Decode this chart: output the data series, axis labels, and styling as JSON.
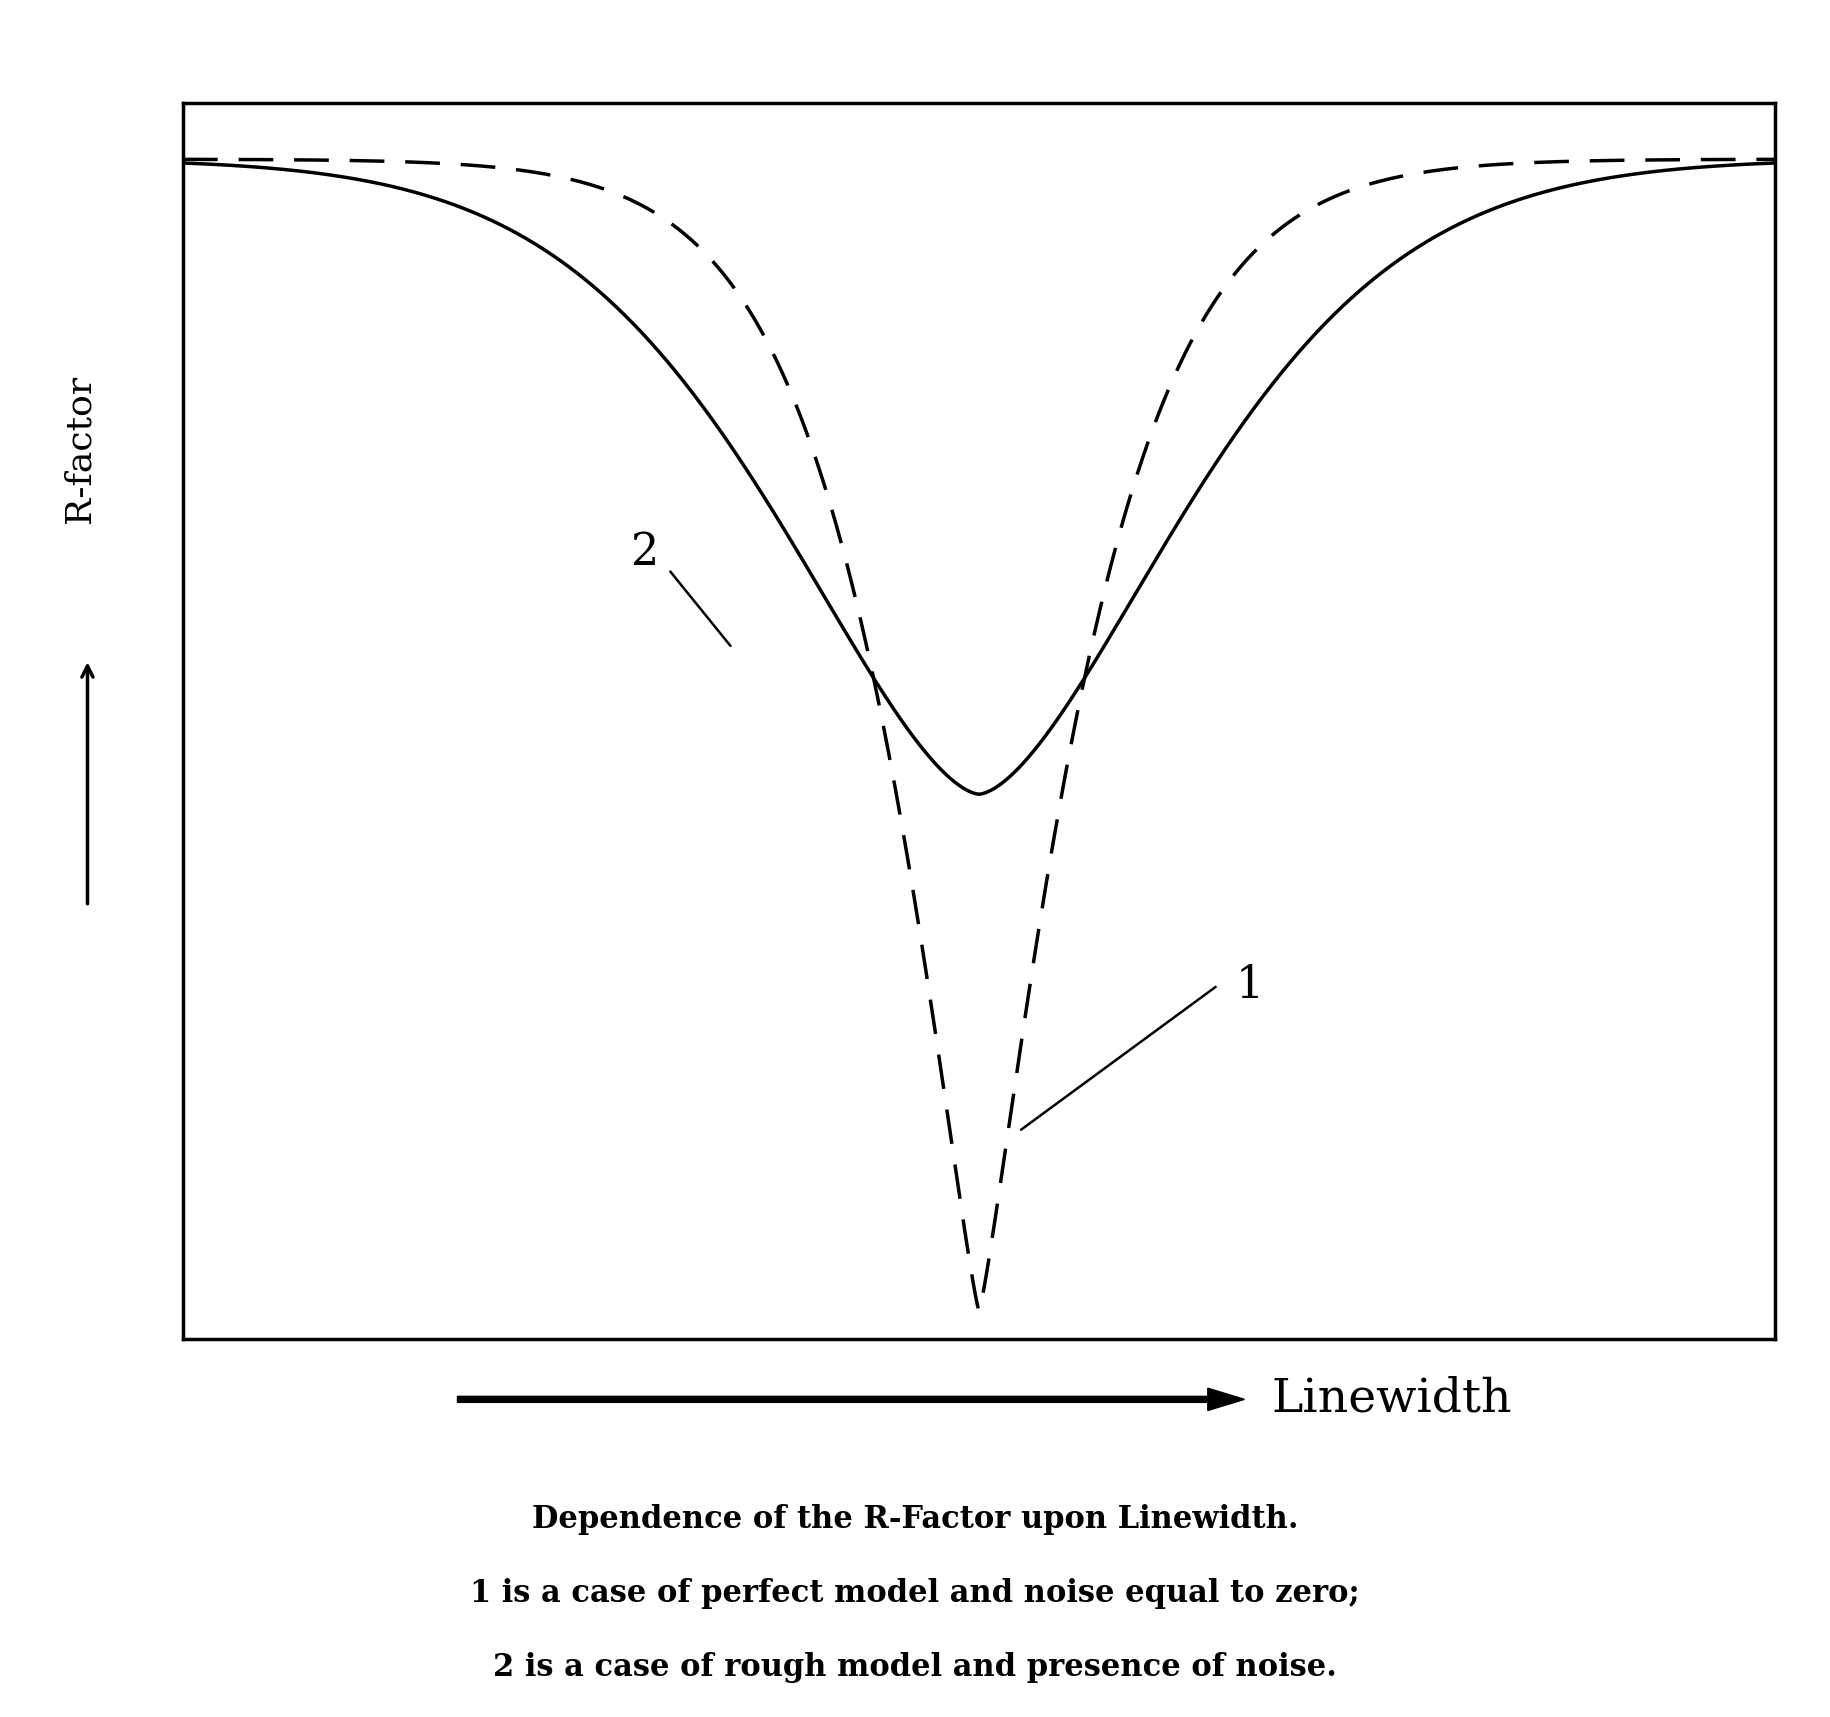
{
  "title": "",
  "ylabel": "R-factor",
  "xlabel": "Linewidth",
  "caption_line1": "Dependence of the R-Factor upon Linewidth.",
  "caption_line2": "1 is a case of perfect model and noise equal to zero;",
  "caption_line3": "2 is a case of rough model and presence of noise.",
  "curve1_label": "1",
  "curve2_label": "2",
  "xlim": [
    -5,
    5
  ],
  "ylim": [
    -1.15,
    1.05
  ],
  "background_color": "#ffffff",
  "curve_color": "#000000",
  "curve1_linewidth": 2.5,
  "curve2_linewidth": 2.5,
  "figsize": [
    18.3,
    17.17
  ],
  "dpi": 100
}
